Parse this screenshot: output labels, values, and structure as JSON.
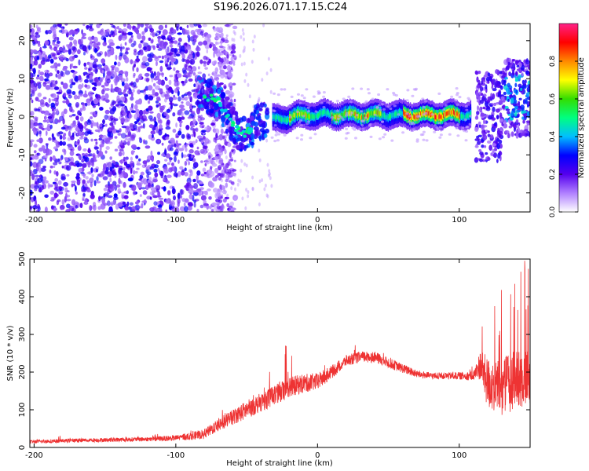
{
  "figure": {
    "title": "S196.2026.071.17.15.C24"
  },
  "chart_data": [
    {
      "type": "heatmap",
      "title": "S196.2026.071.17.15.C24",
      "xlabel": "Height of straight line (km)",
      "ylabel": "Frequency (Hz)",
      "xlim": [
        -203,
        150
      ],
      "ylim": [
        -25,
        24.5
      ],
      "x_ticks": [
        -200,
        -100,
        0,
        100
      ],
      "x_tick_labels": [
        "-200",
        "-100",
        "0",
        "100"
      ],
      "y_ticks": [
        -20,
        -10,
        0,
        10,
        20
      ],
      "y_tick_labels": [
        "-20",
        "-10",
        "0",
        "10",
        "20"
      ],
      "colorbar": {
        "label": "Normalized spectral amplitude",
        "range": [
          0,
          1
        ],
        "ticks": [
          0.0,
          0.2,
          0.4,
          0.6,
          0.8
        ],
        "tick_labels": [
          "0.0",
          "0.2",
          "0.4",
          "0.6",
          "0.8"
        ],
        "colors": [
          "#ffffff",
          "#b080ff",
          "#5500ee",
          "#0000ff",
          "#00bfff",
          "#00ff80",
          "#33dd00",
          "#ffff00",
          "#ff8800",
          "#ff0000",
          "#ff2288"
        ]
      },
      "features": {
        "noise_region_x": [
          -203,
          -70
        ],
        "blob_region_x": [
          -85,
          -35
        ],
        "band_x": [
          -32,
          108
        ],
        "band_center_hz": 0.5,
        "peak_region_x": [
          60,
          100
        ],
        "end_scatter_x": [
          112,
          150
        ]
      }
    },
    {
      "type": "line",
      "xlabel": "Height of straight line (km)",
      "ylabel": "SNR (10 * v/v)",
      "xlim": [
        -203,
        150
      ],
      "ylim": [
        0,
        500
      ],
      "x_ticks": [
        -200,
        -100,
        0,
        100
      ],
      "x_tick_labels": [
        "-200",
        "-100",
        "0",
        "100"
      ],
      "y_ticks": [
        0,
        100,
        200,
        300,
        400,
        500
      ],
      "y_tick_labels": [
        "0",
        "100",
        "200",
        "300",
        "400",
        "500"
      ],
      "color": "#ee3333",
      "series": [
        {
          "name": "SNR",
          "x": [
            -203,
            -180,
            -150,
            -120,
            -100,
            -80,
            -70,
            -60,
            -50,
            -40,
            -30,
            -20,
            -10,
            0,
            10,
            20,
            30,
            40,
            50,
            60,
            70,
            80,
            90,
            100,
            110,
            115,
            120,
            130,
            140,
            150
          ],
          "values": [
            15,
            18,
            20,
            22,
            25,
            35,
            60,
            80,
            100,
            120,
            140,
            160,
            170,
            175,
            200,
            230,
            240,
            240,
            225,
            210,
            195,
            190,
            190,
            190,
            190,
            220,
            170,
            160,
            180,
            190
          ],
          "spread": [
            10,
            10,
            11,
            12,
            15,
            25,
            35,
            40,
            50,
            50,
            55,
            55,
            50,
            45,
            35,
            30,
            30,
            30,
            28,
            25,
            20,
            18,
            18,
            20,
            25,
            80,
            140,
            150,
            160,
            150
          ]
        }
      ]
    }
  ]
}
